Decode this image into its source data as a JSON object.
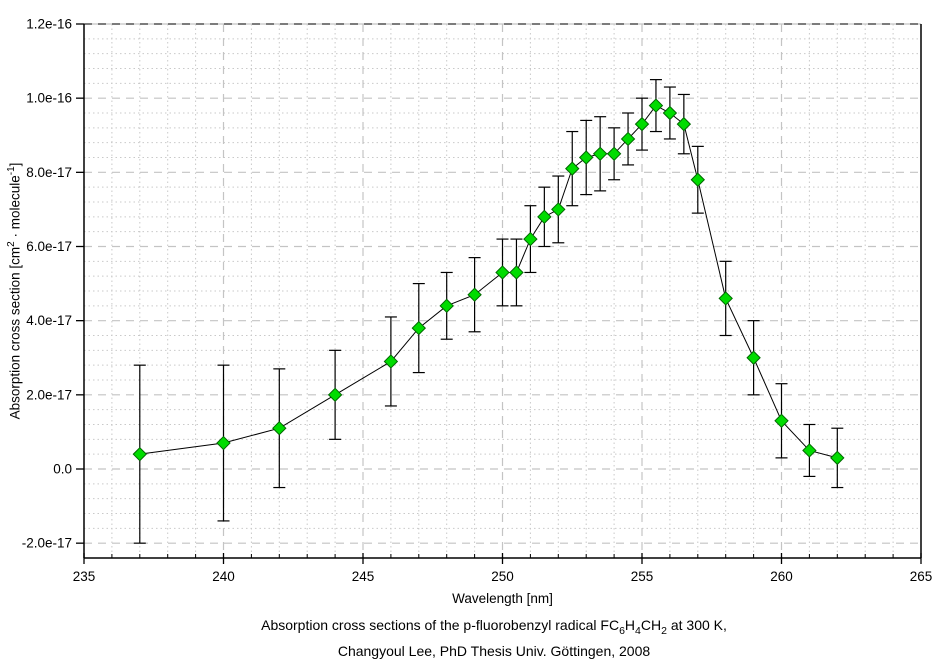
{
  "chart_data": {
    "type": "line",
    "marker": "diamond",
    "title": "",
    "xlabel": "Wavelength [nm]",
    "ylabel": "Absorption cross section [cm2 · molecule-1]",
    "ylabel_segments": [
      {
        "t": "Absorption cross section [cm"
      },
      {
        "t": "2",
        "sup": true
      },
      {
        "t": " · molecule"
      },
      {
        "t": "-1",
        "sup": true
      },
      {
        "t": "]"
      }
    ],
    "xlim": [
      235,
      265
    ],
    "ylim": [
      -2.4e-17,
      1.2e-16
    ],
    "xticks": [
      {
        "v": 235,
        "label": "235"
      },
      {
        "v": 240,
        "label": "240"
      },
      {
        "v": 245,
        "label": "245"
      },
      {
        "v": 250,
        "label": "250"
      },
      {
        "v": 255,
        "label": "255"
      },
      {
        "v": 260,
        "label": "260"
      },
      {
        "v": 265,
        "label": "265"
      }
    ],
    "yticks": [
      {
        "v": 1.2e-16,
        "label": "1.2e-16"
      },
      {
        "v": 1e-16,
        "label": "1.0e-16"
      },
      {
        "v": 8e-17,
        "label": "8.0e-17"
      },
      {
        "v": 6e-17,
        "label": "6.0e-17"
      },
      {
        "v": 4e-17,
        "label": "4.0e-17"
      },
      {
        "v": 2e-17,
        "label": "2.0e-17"
      },
      {
        "v": 0.0,
        "label": "0.0"
      },
      {
        "v": -2e-17,
        "label": "-2.0e-17"
      }
    ],
    "xminor_step": 1,
    "yminor_step": 4e-18,
    "ymajor_step": 2e-17,
    "grid": "major dashed, minor dotted, on",
    "legend": "none",
    "series": [
      {
        "name": "absorption cross section",
        "x": [
          237,
          240,
          242,
          244,
          246,
          247,
          248,
          249,
          250,
          250.5,
          251,
          251.5,
          252,
          252.5,
          253,
          253.5,
          254,
          254.5,
          255,
          255.5,
          256,
          256.5,
          257,
          258,
          259,
          260,
          261,
          262
        ],
        "y": [
          4e-18,
          7e-18,
          1.1e-17,
          2e-17,
          2.9e-17,
          3.8e-17,
          4.4e-17,
          4.7e-17,
          5.3e-17,
          5.3e-17,
          6.2e-17,
          6.8e-17,
          7e-17,
          8.1e-17,
          8.4e-17,
          8.5e-17,
          8.5e-17,
          8.9e-17,
          9.3e-17,
          9.8e-17,
          9.6e-17,
          9.3e-17,
          7.8e-17,
          4.6e-17,
          3e-17,
          1.3e-17,
          5e-18,
          3e-18
        ],
        "yerr": [
          2.4e-17,
          2.1e-17,
          1.6e-17,
          1.2e-17,
          1.2e-17,
          1.2e-17,
          9e-18,
          1e-17,
          9e-18,
          9e-18,
          9e-18,
          8e-18,
          9e-18,
          1e-17,
          1e-17,
          1e-17,
          7e-18,
          7e-18,
          7e-18,
          7e-18,
          7e-18,
          8e-18,
          9e-18,
          1e-17,
          1e-17,
          1e-17,
          7e-18,
          8e-18
        ]
      }
    ],
    "caption_line1_segments": [
      {
        "t": "Absorption cross sections of the p-fluorobenzyl radical FC"
      },
      {
        "t": "6",
        "sub": true
      },
      {
        "t": "H"
      },
      {
        "t": "4",
        "sub": true
      },
      {
        "t": "CH"
      },
      {
        "t": "2",
        "sub": true
      },
      {
        "t": " at 300 K,"
      }
    ],
    "caption_line2": "Changyoul Lee, PhD Thesis Univ. Göttingen, 2008",
    "colors": {
      "marker_fill": "#00dc00",
      "marker_stroke": "#006600",
      "line": "#000000",
      "error_bar": "#000000",
      "axis": "#000000",
      "grid_major": "#c4c4c4",
      "grid_minor": "#c9c9c9",
      "top_border_dash": "#555555",
      "background": "#ffffff"
    }
  }
}
